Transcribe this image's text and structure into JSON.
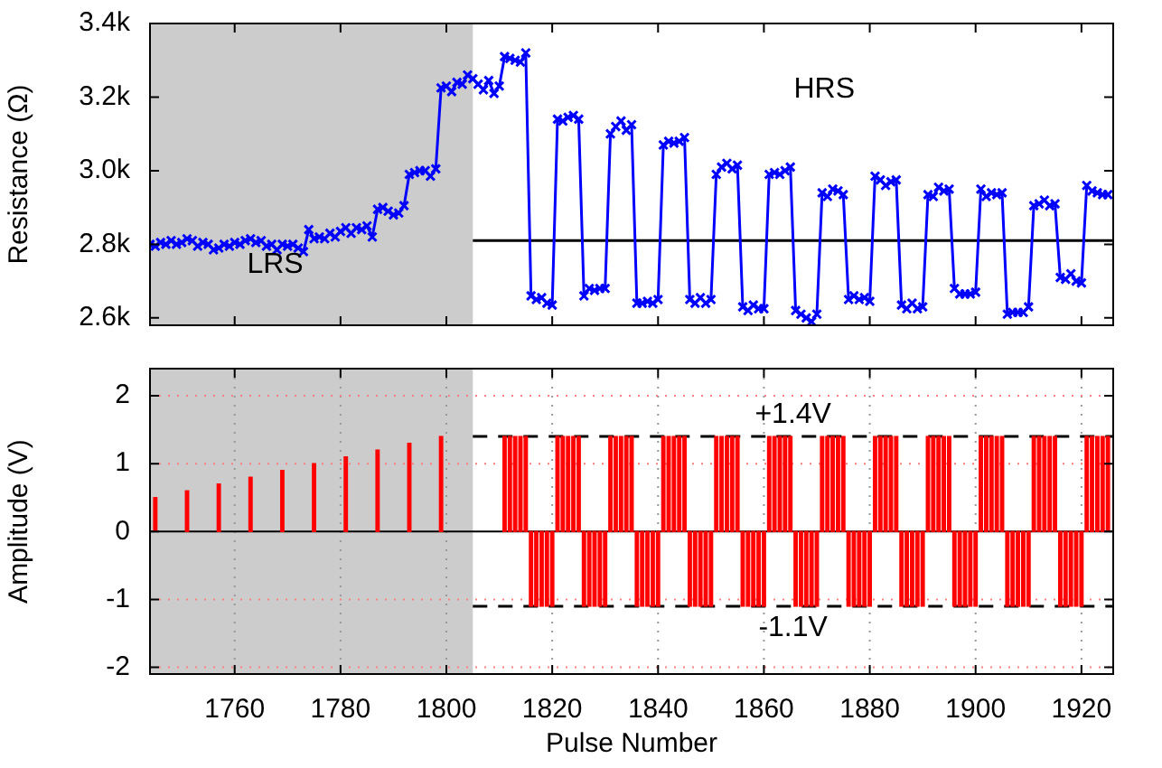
{
  "chart_data": [
    {
      "type": "line",
      "ylabel": "Resistance (Ω)",
      "marker": "cross",
      "color": "#0000ff",
      "grid": false,
      "tick_labels": "y",
      "x": [
        1744,
        1745,
        1746,
        1747,
        1748,
        1749,
        1750,
        1751,
        1752,
        1753,
        1754,
        1755,
        1756,
        1757,
        1758,
        1759,
        1760,
        1761,
        1762,
        1763,
        1764,
        1765,
        1766,
        1767,
        1768,
        1769,
        1770,
        1771,
        1772,
        1773,
        1774,
        1775,
        1776,
        1777,
        1778,
        1779,
        1780,
        1781,
        1782,
        1783,
        1784,
        1785,
        1786,
        1787,
        1788,
        1789,
        1790,
        1791,
        1792,
        1793,
        1794,
        1795,
        1796,
        1797,
        1798,
        1799,
        1800,
        1801,
        1802,
        1803,
        1804,
        1805,
        1806,
        1807,
        1808,
        1809,
        1810,
        1811,
        1812,
        1813,
        1814,
        1815,
        1816,
        1817,
        1818,
        1819,
        1820,
        1821,
        1822,
        1823,
        1824,
        1825,
        1826,
        1827,
        1828,
        1829,
        1830,
        1831,
        1832,
        1833,
        1834,
        1835,
        1836,
        1837,
        1838,
        1839,
        1840,
        1841,
        1842,
        1843,
        1844,
        1845,
        1846,
        1847,
        1848,
        1849,
        1850,
        1851,
        1852,
        1853,
        1854,
        1855,
        1856,
        1857,
        1858,
        1859,
        1860,
        1861,
        1862,
        1863,
        1864,
        1865,
        1866,
        1867,
        1868,
        1869,
        1870,
        1871,
        1872,
        1873,
        1874,
        1875,
        1876,
        1877,
        1878,
        1879,
        1880,
        1881,
        1882,
        1883,
        1884,
        1885,
        1886,
        1887,
        1888,
        1889,
        1890,
        1891,
        1892,
        1893,
        1894,
        1895,
        1896,
        1897,
        1898,
        1899,
        1900,
        1901,
        1902,
        1903,
        1904,
        1905,
        1906,
        1907,
        1908,
        1909,
        1910,
        1911,
        1912,
        1913,
        1914,
        1915,
        1916,
        1917,
        1918,
        1919,
        1920,
        1921,
        1922,
        1923,
        1924,
        1925
      ],
      "values": [
        2800,
        2795,
        2805,
        2800,
        2810,
        2800,
        2805,
        2815,
        2810,
        2795,
        2805,
        2800,
        2785,
        2790,
        2800,
        2795,
        2805,
        2800,
        2810,
        2815,
        2805,
        2810,
        2795,
        2800,
        2785,
        2800,
        2795,
        2800,
        2790,
        2780,
        2840,
        2815,
        2820,
        2815,
        2830,
        2820,
        2835,
        2845,
        2830,
        2845,
        2840,
        2850,
        2820,
        2895,
        2900,
        2890,
        2880,
        2885,
        2905,
        2990,
        2995,
        3000,
        3000,
        2985,
        3005,
        3225,
        3230,
        3215,
        3240,
        3235,
        3260,
        3250,
        3235,
        3220,
        3245,
        3210,
        3230,
        3310,
        3305,
        3300,
        3295,
        3320,
        2660,
        2650,
        2655,
        2640,
        2635,
        3140,
        3135,
        3145,
        3150,
        3140,
        2660,
        2680,
        2675,
        2680,
        2680,
        3100,
        3120,
        3135,
        3110,
        3125,
        2640,
        2640,
        2645,
        2640,
        2650,
        3070,
        3080,
        3075,
        3080,
        3090,
        2650,
        2640,
        2655,
        2640,
        2650,
        2990,
        3010,
        3020,
        3005,
        3015,
        2630,
        2620,
        2635,
        2625,
        2625,
        2990,
        2995,
        2990,
        3000,
        3010,
        2620,
        2610,
        2600,
        2590,
        2610,
        2940,
        2930,
        2950,
        2945,
        2935,
        2650,
        2660,
        2650,
        2655,
        2645,
        2985,
        2975,
        2960,
        2970,
        2975,
        2635,
        2625,
        2640,
        2625,
        2630,
        2935,
        2930,
        2955,
        2945,
        2950,
        2680,
        2665,
        2665,
        2665,
        2670,
        2950,
        2930,
        2940,
        2935,
        2940,
        2610,
        2615,
        2615,
        2615,
        2630,
        2905,
        2910,
        2920,
        2905,
        2910,
        2710,
        2705,
        2720,
        2700,
        2695,
        2960,
        2945,
        2940,
        2935,
        2935
      ],
      "xlim": [
        1744,
        1926
      ],
      "xticks": [
        1760,
        1780,
        1800,
        1820,
        1840,
        1860,
        1880,
        1900,
        1920
      ],
      "ylim": [
        2580,
        3400
      ],
      "yticks": [
        {
          "value": 2600,
          "label": "2.6k"
        },
        {
          "value": 2800,
          "label": "2.8k"
        },
        {
          "value": 3000,
          "label": "3.0k"
        },
        {
          "value": 3200,
          "label": "3.2k"
        },
        {
          "value": 3400,
          "label": "3.4k"
        }
      ],
      "bands": [
        {
          "axis": "x",
          "from": 1744,
          "to": 1805,
          "color": "#cccccc"
        }
      ],
      "ref_lines": [
        {
          "axis": "y",
          "value": 2810,
          "color": "#000000",
          "line_style": "solid"
        }
      ],
      "annotations": [
        "HRS",
        "LRS"
      ]
    },
    {
      "type": "bar",
      "xlabel": "Pulse Number",
      "ylabel": "Amplitude (V)",
      "color": "#ff0000",
      "grid": true,
      "x": [
        1745,
        1751,
        1757,
        1763,
        1769,
        1775,
        1781,
        1787,
        1793,
        1799,
        1811,
        1812,
        1813,
        1814,
        1815,
        1816,
        1817,
        1818,
        1819,
        1820,
        1821,
        1822,
        1823,
        1824,
        1825,
        1826,
        1827,
        1828,
        1829,
        1830,
        1831,
        1832,
        1833,
        1834,
        1835,
        1836,
        1837,
        1838,
        1839,
        1840,
        1841,
        1842,
        1843,
        1844,
        1845,
        1846,
        1847,
        1848,
        1849,
        1850,
        1851,
        1852,
        1853,
        1854,
        1855,
        1856,
        1857,
        1858,
        1859,
        1860,
        1861,
        1862,
        1863,
        1864,
        1865,
        1866,
        1867,
        1868,
        1869,
        1870,
        1871,
        1872,
        1873,
        1874,
        1875,
        1876,
        1877,
        1878,
        1879,
        1880,
        1881,
        1882,
        1883,
        1884,
        1885,
        1886,
        1887,
        1888,
        1889,
        1890,
        1891,
        1892,
        1893,
        1894,
        1895,
        1896,
        1897,
        1898,
        1899,
        1900,
        1901,
        1902,
        1903,
        1904,
        1905,
        1906,
        1907,
        1908,
        1909,
        1910,
        1911,
        1912,
        1913,
        1914,
        1915,
        1916,
        1917,
        1918,
        1919,
        1920,
        1921,
        1922,
        1923,
        1924,
        1925
      ],
      "values": [
        0.5,
        0.6,
        0.7,
        0.8,
        0.9,
        1.0,
        1.1,
        1.2,
        1.3,
        1.4,
        1.4,
        1.4,
        1.4,
        1.4,
        1.4,
        -1.1,
        -1.1,
        -1.1,
        -1.1,
        -1.1,
        1.4,
        1.4,
        1.4,
        1.4,
        1.4,
        -1.1,
        -1.1,
        -1.1,
        -1.1,
        -1.1,
        1.4,
        1.4,
        1.4,
        1.4,
        1.4,
        -1.1,
        -1.1,
        -1.1,
        -1.1,
        -1.1,
        1.4,
        1.4,
        1.4,
        1.4,
        1.4,
        -1.1,
        -1.1,
        -1.1,
        -1.1,
        -1.1,
        1.4,
        1.4,
        1.4,
        1.4,
        1.4,
        -1.1,
        -1.1,
        -1.1,
        -1.1,
        -1.1,
        1.4,
        1.4,
        1.4,
        1.4,
        1.4,
        -1.1,
        -1.1,
        -1.1,
        -1.1,
        -1.1,
        1.4,
        1.4,
        1.4,
        1.4,
        1.4,
        -1.1,
        -1.1,
        -1.1,
        -1.1,
        -1.1,
        1.4,
        1.4,
        1.4,
        1.4,
        1.4,
        -1.1,
        -1.1,
        -1.1,
        -1.1,
        -1.1,
        1.4,
        1.4,
        1.4,
        1.4,
        1.4,
        -1.1,
        -1.1,
        -1.1,
        -1.1,
        -1.1,
        1.4,
        1.4,
        1.4,
        1.4,
        1.4,
        -1.1,
        -1.1,
        -1.1,
        -1.1,
        -1.1,
        1.4,
        1.4,
        1.4,
        1.4,
        1.4,
        -1.1,
        -1.1,
        -1.1,
        -1.1,
        -1.1,
        1.4,
        1.4,
        1.4,
        1.4,
        1.4
      ],
      "xlim": [
        1744,
        1926
      ],
      "xticks": [
        1760,
        1780,
        1800,
        1820,
        1840,
        1860,
        1880,
        1900,
        1920
      ],
      "ylim": [
        -2.1,
        2.4
      ],
      "yticks": [
        -2,
        -1,
        0,
        1,
        2
      ],
      "bands": [
        {
          "axis": "x",
          "from": 1744,
          "to": 1805,
          "color": "#cccccc"
        }
      ],
      "ref_lines": [
        {
          "axis": "y",
          "value": 1.4,
          "label": "+1.4V",
          "color": "#000000",
          "line_style": "dashed"
        },
        {
          "axis": "y",
          "value": -1.1,
          "label": "-1.1V",
          "color": "#000000",
          "line_style": "dashed"
        }
      ]
    }
  ]
}
